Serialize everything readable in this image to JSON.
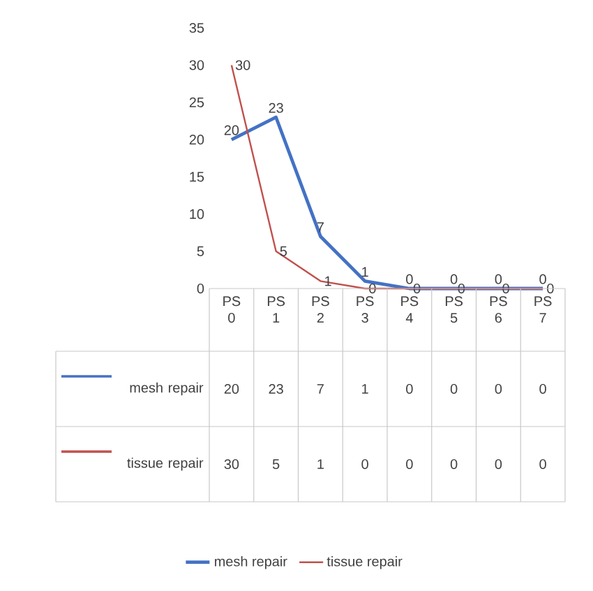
{
  "chart_data": {
    "type": "line",
    "categories": [
      "PS 0",
      "PS 1",
      "PS 2",
      "PS 3",
      "PS 4",
      "PS 5",
      "PS 6",
      "PS 7"
    ],
    "series": [
      {
        "name": "mesh repair",
        "color": "#4472c4",
        "values": [
          20,
          23,
          7,
          1,
          0,
          0,
          0,
          0
        ],
        "value_labels": [
          "20",
          "23",
          "7",
          "1",
          "0",
          "0",
          "0",
          "0"
        ]
      },
      {
        "name": "tissue repair",
        "color": "#c0504d",
        "values": [
          30,
          5,
          1,
          0,
          0,
          0,
          0,
          0
        ],
        "value_labels": [
          "30",
          "5",
          "1",
          "0",
          "0",
          "0",
          "0",
          "0"
        ]
      }
    ],
    "ylim": [
      0,
      35
    ],
    "yticks": [
      0,
      5,
      10,
      15,
      20,
      25,
      30,
      35
    ],
    "data_labels": true,
    "legend": "bottom",
    "marker": "none",
    "line_style": "solid"
  }
}
